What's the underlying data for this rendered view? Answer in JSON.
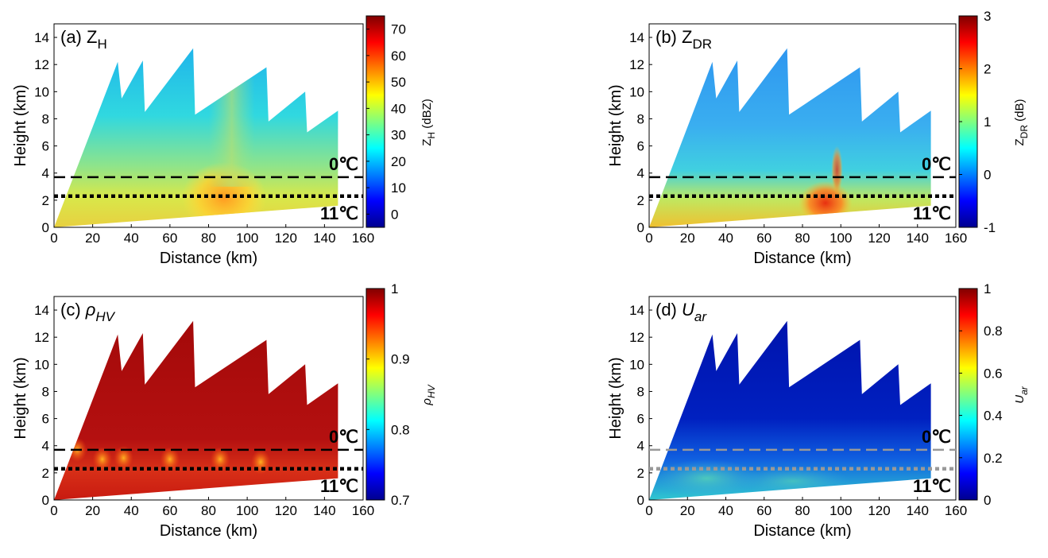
{
  "figure": {
    "panels": [
      {
        "id": "a",
        "title_prefix": "(a) ",
        "title_var": "Z",
        "title_sub": "H",
        "title_italic": false,
        "colorbar": {
          "label": "Z",
          "label_sub": "H",
          "label_unit": " (dBZ)",
          "ticks": [
            0,
            10,
            20,
            30,
            40,
            50,
            60,
            70
          ],
          "range": [
            -5,
            75
          ]
        },
        "line_color": "#000000"
      },
      {
        "id": "b",
        "title_prefix": "(b) ",
        "title_var": "Z",
        "title_sub": "DR",
        "title_italic": false,
        "colorbar": {
          "label": "Z",
          "label_sub": "DR",
          "label_unit": " (dB)",
          "ticks": [
            -1,
            0,
            1,
            2,
            3
          ],
          "range": [
            -1,
            3
          ]
        },
        "line_color": "#000000"
      },
      {
        "id": "c",
        "title_prefix": "(c) ",
        "title_var": "ρ",
        "title_sub": "HV",
        "title_italic": true,
        "colorbar": {
          "label": "ρ",
          "label_sub": "HV",
          "label_unit": "",
          "ticks": [
            0.7,
            0.8,
            0.9,
            1
          ],
          "range": [
            0.7,
            1
          ]
        },
        "line_color": "#000000"
      },
      {
        "id": "d",
        "title_prefix": "(d) ",
        "title_var": "U",
        "title_sub": "ar",
        "title_italic": true,
        "colorbar": {
          "label": "U",
          "label_sub": "ar",
          "label_unit": "",
          "ticks": [
            0,
            0.2,
            0.4,
            0.6,
            0.8,
            1
          ],
          "range": [
            0,
            1
          ]
        },
        "line_color": "#999999"
      }
    ],
    "xlabel": "Distance (km)",
    "ylabel": "Height (km)",
    "xticks": [
      0,
      20,
      40,
      60,
      80,
      100,
      120,
      140,
      160
    ],
    "yticks": [
      0,
      2,
      4,
      6,
      8,
      10,
      12,
      14
    ],
    "label_zero": "0℃",
    "label_eleven": "11℃"
  },
  "chart_data": {
    "type": "heatmap",
    "panels": [
      "(a) Z_H",
      "(b) Z_DR",
      "(c) ρ_HV",
      "(d) U_ar"
    ],
    "xlabel": "Distance (km)",
    "ylabel": "Height (km)",
    "xlim": [
      0,
      160
    ],
    "ylim": [
      0,
      15
    ],
    "freezing_level_km": 3.7,
    "eleven_degree_level_km": 2.3,
    "scan_envelope": {
      "distance_km": [
        0,
        33,
        35,
        46,
        47,
        72,
        73,
        110,
        111,
        130,
        131,
        147,
        147,
        0
      ],
      "height_km": [
        0,
        12.2,
        9.5,
        12.3,
        8.5,
        13.2,
        8.3,
        11.8,
        7.8,
        10.0,
        7.0,
        8.6,
        1.6,
        0
      ]
    }
  }
}
